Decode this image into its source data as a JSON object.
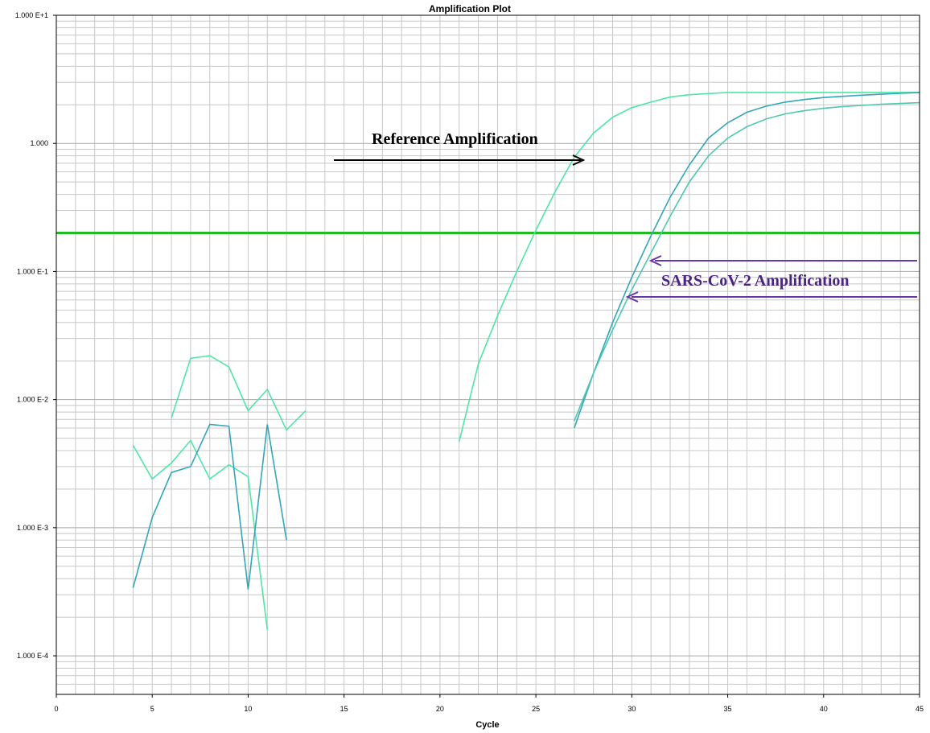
{
  "chart_data": {
    "type": "line",
    "title": "Amplification Plot",
    "xlabel": "Cycle",
    "ylabel": "",
    "yscale": "log",
    "xlim": [
      0,
      45
    ],
    "ylim": [
      5e-05,
      10
    ],
    "grid": true,
    "x_ticks": [
      {
        "value": 0,
        "label": "0"
      },
      {
        "value": 5,
        "label": "5"
      },
      {
        "value": 10,
        "label": "10"
      },
      {
        "value": 15,
        "label": "15"
      },
      {
        "value": 20,
        "label": "20"
      },
      {
        "value": 25,
        "label": "25"
      },
      {
        "value": 30,
        "label": "30"
      },
      {
        "value": 35,
        "label": "35"
      },
      {
        "value": 40,
        "label": "40"
      },
      {
        "value": 45,
        "label": "45"
      }
    ],
    "y_ticks": [
      {
        "value": 10,
        "label": "1.000 E+1"
      },
      {
        "value": 1,
        "label": "1.000"
      },
      {
        "value": 0.1,
        "label": "1.000 E-1"
      },
      {
        "value": 0.01,
        "label": "1.000 E-2"
      },
      {
        "value": 0.001,
        "label": "1.000 E-3"
      },
      {
        "value": 0.0001,
        "label": "1.000 E-4"
      }
    ],
    "threshold": {
      "value": 0.2,
      "color": "#22bb22"
    },
    "series": [
      {
        "color": "#4ee6a6",
        "points": [
          [
            6,
            0.0072
          ],
          [
            7,
            0.021
          ],
          [
            8,
            0.022
          ],
          [
            9,
            0.018
          ],
          [
            10,
            0.0082
          ],
          [
            11,
            0.012
          ],
          [
            12,
            0.0058
          ],
          [
            13,
            0.0082
          ]
        ]
      },
      {
        "color": "#4ee6a6",
        "points": [
          [
            4,
            0.0044
          ],
          [
            5,
            0.0024
          ],
          [
            6,
            0.0032
          ],
          [
            7,
            0.0048
          ],
          [
            8,
            0.0024
          ],
          [
            9,
            0.0031
          ],
          [
            10,
            0.0025
          ],
          [
            11,
            0.00016
          ]
        ]
      },
      {
        "color": "#34a6b8",
        "points": [
          [
            4,
            0.00034
          ],
          [
            5,
            0.0012
          ],
          [
            6,
            0.0027
          ],
          [
            7,
            0.003
          ],
          [
            8,
            0.0064
          ],
          [
            9,
            0.0062
          ],
          [
            10,
            0.00033
          ],
          [
            11,
            0.0064
          ],
          [
            12,
            0.0008
          ]
        ]
      },
      {
        "color": "#4ee6a6",
        "points": [
          [
            21,
            0.0047
          ],
          [
            22,
            0.019
          ],
          [
            23,
            0.045
          ],
          [
            24,
            0.1
          ],
          [
            25,
            0.21
          ],
          [
            26,
            0.42
          ],
          [
            27,
            0.78
          ],
          [
            28,
            1.2
          ],
          [
            29,
            1.6
          ],
          [
            30,
            1.9
          ],
          [
            31,
            2.1
          ],
          [
            32,
            2.3
          ],
          [
            33,
            2.4
          ],
          [
            34,
            2.45
          ],
          [
            35,
            2.5
          ],
          [
            36,
            2.5
          ],
          [
            37,
            2.5
          ],
          [
            38,
            2.5
          ],
          [
            39,
            2.5
          ],
          [
            40,
            2.5
          ],
          [
            41,
            2.5
          ],
          [
            42,
            2.5
          ],
          [
            43,
            2.5
          ],
          [
            44,
            2.5
          ],
          [
            45,
            2.5
          ]
        ]
      },
      {
        "color": "#34a6b8",
        "points": [
          [
            27,
            0.006
          ],
          [
            28,
            0.016
          ],
          [
            29,
            0.04
          ],
          [
            30,
            0.09
          ],
          [
            31,
            0.19
          ],
          [
            32,
            0.38
          ],
          [
            33,
            0.68
          ],
          [
            34,
            1.1
          ],
          [
            35,
            1.45
          ],
          [
            36,
            1.75
          ],
          [
            37,
            1.95
          ],
          [
            38,
            2.1
          ],
          [
            39,
            2.2
          ],
          [
            40,
            2.28
          ],
          [
            41,
            2.33
          ],
          [
            42,
            2.38
          ],
          [
            43,
            2.42
          ],
          [
            44,
            2.46
          ],
          [
            45,
            2.5
          ]
        ]
      },
      {
        "color": "#4ec8b0",
        "points": [
          [
            27,
            0.0068
          ],
          [
            28,
            0.016
          ],
          [
            29,
            0.035
          ],
          [
            30,
            0.072
          ],
          [
            31,
            0.14
          ],
          [
            32,
            0.27
          ],
          [
            33,
            0.5
          ],
          [
            34,
            0.8
          ],
          [
            35,
            1.1
          ],
          [
            36,
            1.35
          ],
          [
            37,
            1.55
          ],
          [
            38,
            1.7
          ],
          [
            39,
            1.8
          ],
          [
            40,
            1.88
          ],
          [
            41,
            1.94
          ],
          [
            42,
            1.98
          ],
          [
            43,
            2.02
          ],
          [
            44,
            2.05
          ],
          [
            45,
            2.08
          ]
        ]
      }
    ],
    "annotations": [
      {
        "text": "Reference Amplification",
        "color": "#000000"
      },
      {
        "text": "SARS-CoV-2 Amplification",
        "color": "#6a35a8"
      }
    ]
  }
}
